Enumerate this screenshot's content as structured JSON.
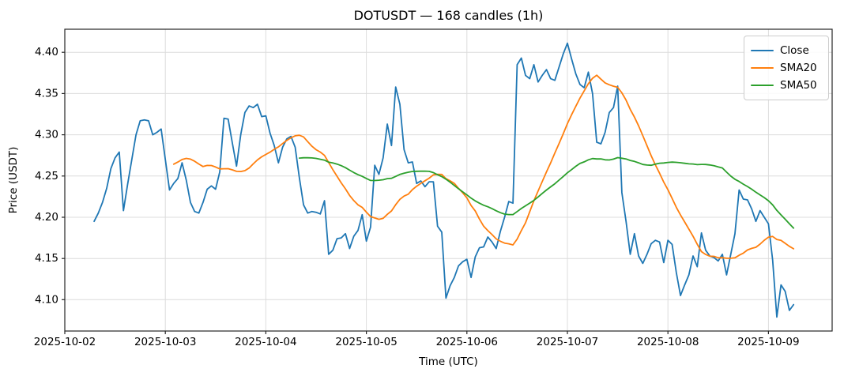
{
  "chart_data": {
    "type": "line",
    "title": "DOTUSDT — 168 candles (1h)",
    "xlabel": "Time (UTC)",
    "ylabel": "Price (USDT)",
    "symbol": "DOTUSDT",
    "candle_count": 168,
    "candle_interval": "1h",
    "x_start": "2025-10-02 07:00",
    "x_step_hours": 1,
    "grid": true,
    "legend_position": "upper right",
    "ylim": [
      4.062,
      4.428
    ],
    "y_ticks": [
      {
        "value": 4.1,
        "label": "4.10"
      },
      {
        "value": 4.15,
        "label": "4.15"
      },
      {
        "value": 4.2,
        "label": "4.20"
      },
      {
        "value": 4.25,
        "label": "4.25"
      },
      {
        "value": 4.3,
        "label": "4.30"
      },
      {
        "value": 4.35,
        "label": "4.35"
      },
      {
        "value": 4.4,
        "label": "4.40"
      }
    ],
    "x_ticks": [
      {
        "hour": -7,
        "label": "2025-10-02"
      },
      {
        "hour": 17,
        "label": "2025-10-03"
      },
      {
        "hour": 41,
        "label": "2025-10-04"
      },
      {
        "hour": 65,
        "label": "2025-10-05"
      },
      {
        "hour": 89,
        "label": "2025-10-06"
      },
      {
        "hour": 113,
        "label": "2025-10-07"
      },
      {
        "hour": 137,
        "label": "2025-10-08"
      },
      {
        "hour": 161,
        "label": "2025-10-09"
      }
    ],
    "series": [
      {
        "name": "Close",
        "color": "#1f77b4",
        "values": [
          4.195,
          4.205,
          4.218,
          4.235,
          4.259,
          4.272,
          4.279,
          4.208,
          4.24,
          4.27,
          4.3,
          4.317,
          4.318,
          4.317,
          4.3,
          4.303,
          4.307,
          4.27,
          4.233,
          4.241,
          4.247,
          4.266,
          4.245,
          4.218,
          4.207,
          4.205,
          4.218,
          4.234,
          4.238,
          4.234,
          4.255,
          4.32,
          4.319,
          4.29,
          4.262,
          4.3,
          4.327,
          4.335,
          4.333,
          4.337,
          4.322,
          4.323,
          4.302,
          4.287,
          4.266,
          4.285,
          4.295,
          4.298,
          4.285,
          4.248,
          4.215,
          4.205,
          4.207,
          4.206,
          4.204,
          4.22,
          4.155,
          4.16,
          4.174,
          4.175,
          4.18,
          4.162,
          4.177,
          4.184,
          4.203,
          4.171,
          4.188,
          4.263,
          4.252,
          4.272,
          4.313,
          4.287,
          4.358,
          4.337,
          4.282,
          4.266,
          4.267,
          4.241,
          4.244,
          4.237,
          4.243,
          4.243,
          4.189,
          4.182,
          4.102,
          4.117,
          4.127,
          4.141,
          4.146,
          4.149,
          4.127,
          4.152,
          4.163,
          4.164,
          4.176,
          4.17,
          4.162,
          4.183,
          4.2,
          4.219,
          4.217,
          4.385,
          4.393,
          4.372,
          4.368,
          4.385,
          4.364,
          4.372,
          4.379,
          4.368,
          4.366,
          4.382,
          4.398,
          4.411,
          4.392,
          4.374,
          4.361,
          4.357,
          4.376,
          4.35,
          4.291,
          4.289,
          4.303,
          4.327,
          4.333,
          4.359,
          4.23,
          4.195,
          4.155,
          4.18,
          4.153,
          4.144,
          4.155,
          4.168,
          4.172,
          4.17,
          4.145,
          4.172,
          4.167,
          4.133,
          4.105,
          4.118,
          4.13,
          4.153,
          4.14,
          4.181,
          4.16,
          4.153,
          4.151,
          4.147,
          4.155,
          4.13,
          4.155,
          4.18,
          4.233,
          4.222,
          4.221,
          4.21,
          4.195,
          4.208,
          4.2,
          4.192,
          4.148,
          4.079,
          4.118,
          4.11,
          4.087,
          4.094
        ]
      },
      {
        "name": "SMA20",
        "color": "#ff7f0e",
        "derived_from": "Close",
        "window": 20
      },
      {
        "name": "SMA50",
        "color": "#2ca02c",
        "derived_from": "Close",
        "window": 50
      }
    ]
  }
}
